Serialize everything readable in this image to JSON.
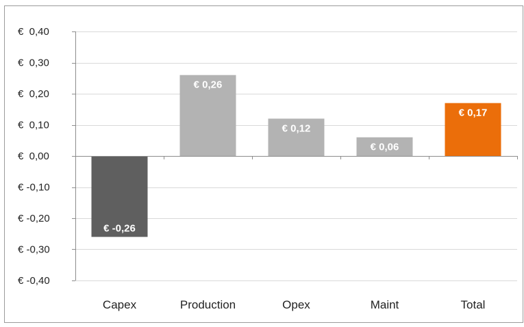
{
  "chart_data": {
    "type": "bar",
    "categories": [
      "Capex",
      "Production",
      "Opex",
      "Maint",
      "Total"
    ],
    "values": [
      -0.26,
      0.26,
      0.12,
      0.06,
      0.17
    ],
    "data_labels": [
      "€ -0,26",
      "€ 0,26",
      "€ 0,12",
      "€ 0,06",
      "€ 0,17"
    ],
    "bar_colors": [
      "#5f5f5f",
      "#b3b3b3",
      "#b3b3b3",
      "#b3b3b3",
      "#eb6e0a"
    ],
    "ylim": [
      -0.4,
      0.4
    ],
    "yticks": [
      0.4,
      0.3,
      0.2,
      0.1,
      0.0,
      -0.1,
      -0.2,
      -0.3,
      -0.4
    ],
    "ytick_labels": [
      "€  0,40",
      "€  0,30",
      "€  0,20",
      "€  0,10",
      "€  0,00",
      "€ -0,10",
      "€ -0,20",
      "€ -0,30",
      "€ -0,40"
    ],
    "title": "",
    "xlabel": "",
    "ylabel": "",
    "grid": true,
    "legend": false,
    "colors": {
      "grid": "#d9d9d9",
      "axis": "#8c8c8c",
      "frame": "#9a9a9a"
    }
  }
}
